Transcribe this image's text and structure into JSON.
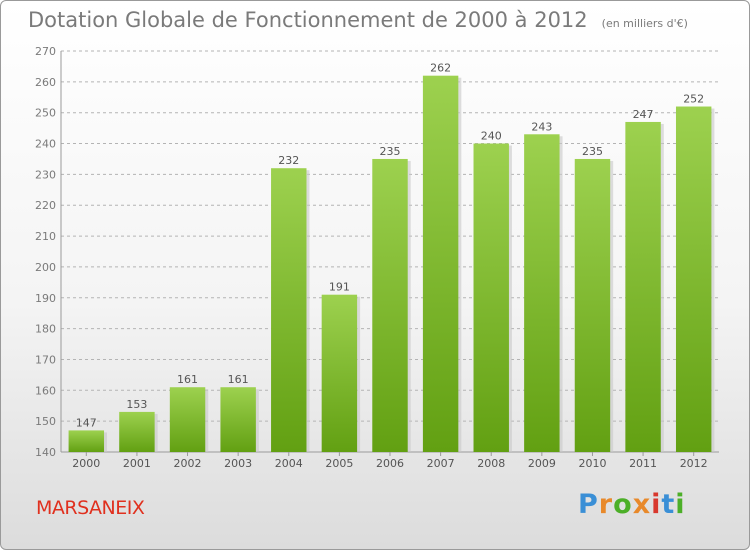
{
  "chart_data": {
    "type": "bar",
    "title": "Dotation Globale de Fonctionnement de 2000 à 2012",
    "subtitle": "(en milliers d'€)",
    "categories": [
      "2000",
      "2001",
      "2002",
      "2003",
      "2004",
      "2005",
      "2006",
      "2007",
      "2008",
      "2009",
      "2010",
      "2011",
      "2012"
    ],
    "values": [
      147,
      153,
      161,
      161,
      232,
      191,
      235,
      262,
      240,
      243,
      235,
      247,
      252
    ],
    "ylim": [
      140,
      270
    ],
    "yticks": [
      140,
      150,
      160,
      170,
      180,
      190,
      200,
      210,
      220,
      230,
      240,
      250,
      260,
      270
    ],
    "xlabel": "",
    "ylabel": "",
    "grid": true,
    "colors": {
      "bar_top": "#9dd14f",
      "bar_bottom": "#62a012",
      "text": "#7a7a7a"
    }
  },
  "footer": {
    "commune": "MARSANEIX",
    "brand": "Proxiti",
    "brand_colors": [
      "#3a8fd6",
      "#e8892a",
      "#4caf28",
      "#e8892a",
      "#d8382e",
      "#3a8fd6",
      "#4caf28"
    ]
  }
}
